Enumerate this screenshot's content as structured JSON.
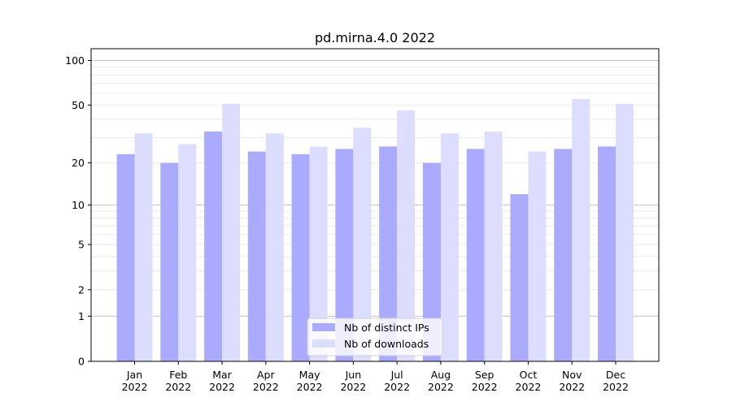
{
  "chart_data": {
    "type": "bar",
    "title": "pd.mirna.4.0 2022",
    "xlabel": "",
    "ylabel": "",
    "yscale": "log(1+y)",
    "ylim": [
      0,
      120
    ],
    "yticks": [
      0,
      1,
      2,
      5,
      10,
      20,
      50,
      100
    ],
    "categories": [
      [
        "Jan",
        "2022"
      ],
      [
        "Feb",
        "2022"
      ],
      [
        "Mar",
        "2022"
      ],
      [
        "Apr",
        "2022"
      ],
      [
        "May",
        "2022"
      ],
      [
        "Jun",
        "2022"
      ],
      [
        "Jul",
        "2022"
      ],
      [
        "Aug",
        "2022"
      ],
      [
        "Sep",
        "2022"
      ],
      [
        "Oct",
        "2022"
      ],
      [
        "Nov",
        "2022"
      ],
      [
        "Dec",
        "2022"
      ]
    ],
    "series": [
      {
        "name": "Nb of distinct IPs",
        "color": "#aaaaff",
        "values": [
          23,
          20,
          33,
          24,
          23,
          25,
          26,
          20,
          25,
          12,
          25,
          26
        ]
      },
      {
        "name": "Nb of downloads",
        "color": "#ddddff",
        "values": [
          32,
          27,
          51,
          32,
          26,
          35,
          46,
          32,
          33,
          24,
          55,
          51
        ]
      }
    ],
    "legend": "bottom-center",
    "grid": true
  }
}
